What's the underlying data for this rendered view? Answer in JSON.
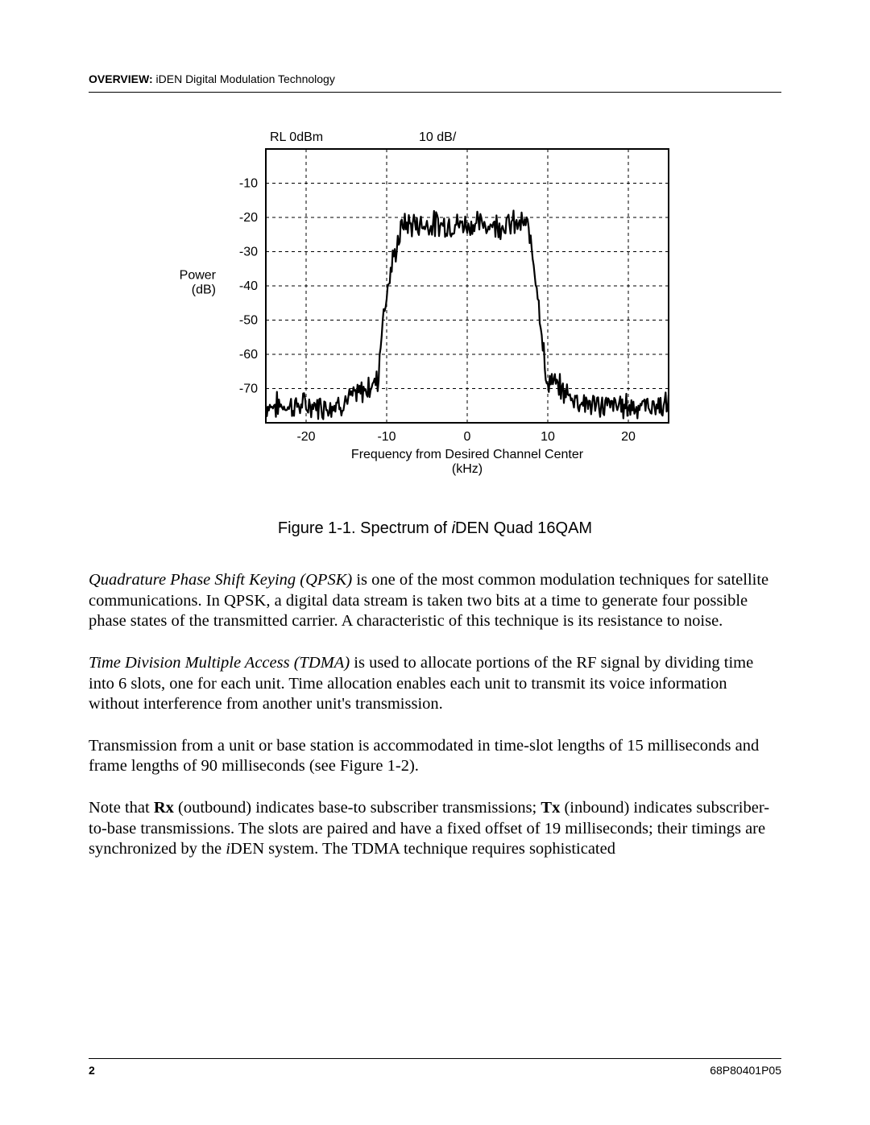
{
  "header": {
    "bold": "OVERVIEW:",
    "rest": "  iDEN Digital Modulation Technology"
  },
  "chart": {
    "type": "line",
    "top_left_label": "RL  0dBm",
    "top_right_label": "10 dB/",
    "y_axis_label_1": "Power",
    "y_axis_label_2": "(dB)",
    "x_axis_label_1": "Frequency from Desired Channel Center",
    "x_axis_label_2": "(kHz)",
    "y_ticks": [
      -10,
      -20,
      -30,
      -40,
      -50,
      -60,
      -70
    ],
    "x_ticks": [
      -20,
      -10,
      0,
      10,
      20
    ],
    "xlim": [
      -25,
      25
    ],
    "ylim": [
      -80,
      0
    ],
    "line_color": "#000000",
    "line_width": 2.2,
    "grid_dash": "4,4",
    "grid_color": "#000000",
    "border_color": "#000000",
    "background_color": "#ffffff",
    "label_fontsize": 16,
    "tick_fontsize": 16,
    "noise_amplitude": 3.0,
    "noise_seed": 7,
    "shape": {
      "plateau_db": -22,
      "floor_db": -75,
      "rise_start_khz": -11,
      "rise_end_khz": -8,
      "fall_start_khz": 7,
      "fall_end_khz": 10,
      "skirt_start_khz": -18,
      "skirt_end_khz": 17,
      "skirt_floor_rise_db": 8
    }
  },
  "figure_caption": {
    "prefix": "Figure 1-1.  Spectrum of ",
    "italic": "i",
    "suffix": "DEN Quad 16QAM"
  },
  "paragraphs": {
    "p1_i": "Quadrature Phase Shift Keying (QPSK)",
    "p1_rest": " is one of the most common modulation techniques for satellite communications. In QPSK, a digital data stream is taken two bits at a time to generate four possible phase states of the transmitted carrier. A characteristic of this technique is its resistance to noise.",
    "p2_i": "Time Division Multiple Access (TDMA)",
    "p2_rest": " is used to allocate portions of the RF signal by dividing time into 6 slots, one for each unit. Time allocation enables each unit to transmit its voice information without interference from another unit's transmission.",
    "p3": "Transmission from a unit or base station is accommodated in time-slot lengths of 15 milliseconds and frame lengths of 90 milliseconds (see Figure 1-2).",
    "p4_a": "Note that ",
    "p4_b1": "Rx",
    "p4_b": " (outbound) indicates base-to subscriber transmissions; ",
    "p4_b2": "Tx",
    "p4_c": " (inbound) indicates subscriber-to-base transmissions. The slots are paired and have a fixed offset of 19 milliseconds; their timings are synchronized by the ",
    "p4_i": "i",
    "p4_d": "DEN system. The TDMA technique requires sophisticated"
  },
  "footer": {
    "page": "2",
    "docref": "68P80401P05"
  }
}
